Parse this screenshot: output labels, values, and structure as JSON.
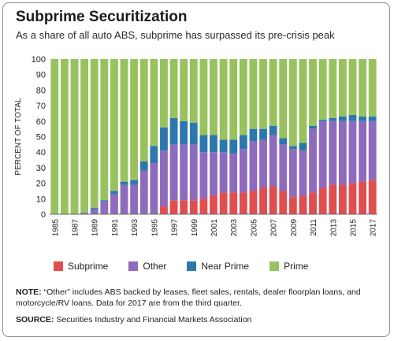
{
  "title": "Subprime Securitization",
  "subtitle": "As a share of all auto ABS, subprime has surpassed its pre-crisis peak",
  "note_label": "NOTE:",
  "note_text": " “Other” includes ABS backed by leases, fleet sales, rentals, dealer floorplan loans, and motorcycle/RV loans. Data for 2017 are from the third quarter.",
  "source_label": "SOURCE:",
  "source_text": " Securities Industry and Financial Markets Association",
  "colors": {
    "Subprime": "#e04e50",
    "Other": "#8e6bbd",
    "Near Prime": "#2d77ad",
    "Prime": "#97c25e"
  },
  "chart_data": {
    "type": "bar",
    "stacked": true,
    "ylabel": "PERCENT OF TOTAL",
    "xlabel": "",
    "ylim": [
      0,
      100
    ],
    "yticks": [
      0,
      10,
      20,
      30,
      40,
      50,
      60,
      70,
      80,
      90,
      100
    ],
    "grid": false,
    "legend_position": "bottom",
    "categories": [
      "1985",
      "1986",
      "1987",
      "1988",
      "1989",
      "1990",
      "1991",
      "1992",
      "1993",
      "1994",
      "1995",
      "1996",
      "1997",
      "1998",
      "1999",
      "2000",
      "2001",
      "2002",
      "2003",
      "2004",
      "2005",
      "2006",
      "2007",
      "2008",
      "2009",
      "2010",
      "2011",
      "2012",
      "2013",
      "2014",
      "2015",
      "2016",
      "2017"
    ],
    "tick_labels": [
      "1985",
      "1987",
      "1989",
      "1991",
      "1993",
      "1995",
      "1997",
      "1999",
      "2001",
      "2003",
      "2005",
      "2007",
      "2009",
      "2011",
      "2013",
      "2015",
      "2017"
    ],
    "series": [
      {
        "name": "Subprime",
        "values": [
          0,
          0,
          0,
          0,
          0,
          0,
          0,
          0,
          0,
          0,
          0,
          5,
          9,
          9,
          9,
          10,
          12,
          14,
          14,
          14,
          15,
          17,
          18,
          15,
          11,
          12,
          14,
          17,
          19,
          19,
          20,
          21,
          22
        ]
      },
      {
        "name": "Other",
        "values": [
          0,
          0,
          0,
          1,
          3,
          8,
          13,
          19,
          19,
          28,
          33,
          36,
          36,
          36,
          36,
          30,
          28,
          26,
          25,
          28,
          32,
          31,
          33,
          30,
          31,
          29,
          41,
          43,
          41,
          41,
          40,
          39,
          38
        ]
      },
      {
        "name": "Near Prime",
        "values": [
          0,
          0,
          0,
          0,
          1,
          1,
          2,
          2,
          3,
          6,
          11,
          15,
          17,
          15,
          14,
          11,
          11,
          8,
          9,
          9,
          8,
          7,
          6,
          4,
          2,
          5,
          2,
          1,
          2,
          3,
          4,
          3,
          3
        ]
      },
      {
        "name": "Prime",
        "values": [
          100,
          100,
          100,
          99,
          96,
          91,
          85,
          79,
          78,
          66,
          56,
          44,
          38,
          40,
          41,
          49,
          49,
          52,
          52,
          49,
          45,
          45,
          43,
          51,
          56,
          54,
          43,
          39,
          38,
          37,
          36,
          37,
          37
        ]
      }
    ]
  }
}
